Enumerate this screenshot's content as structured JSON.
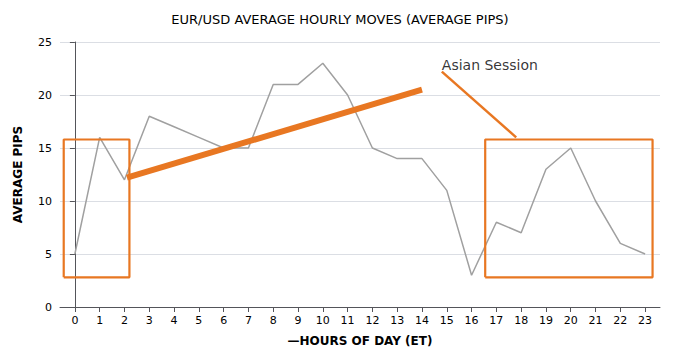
{
  "chart_data": {
    "type": "line",
    "title": "EUR/USD AVERAGE HOURLY MOVES (AVERAGE PIPS)",
    "xlabel": "—HOURS OF DAY (ET)",
    "ylabel": "AVERAGE PIPS",
    "x": [
      0,
      1,
      2,
      3,
      4,
      5,
      6,
      7,
      8,
      9,
      10,
      11,
      12,
      13,
      14,
      15,
      16,
      17,
      18,
      19,
      20,
      21,
      22,
      23
    ],
    "values": [
      5,
      16,
      12,
      18,
      17,
      16,
      15,
      15,
      21,
      21,
      23,
      20,
      15,
      14,
      14,
      11,
      3,
      8,
      7,
      13,
      15,
      10,
      6,
      5
    ],
    "color": "#a0a0a0",
    "xlim": [
      -0.6,
      23.6
    ],
    "xticks": [
      0,
      1,
      2,
      3,
      4,
      5,
      6,
      7,
      8,
      9,
      10,
      11,
      12,
      13,
      14,
      15,
      16,
      17,
      18,
      19,
      20,
      21,
      22,
      23
    ],
    "ylim": [
      0,
      25
    ],
    "yticks": [
      0,
      5,
      10,
      15,
      20,
      25
    ],
    "grid": true,
    "annotations": [
      {
        "text": "Asian Session",
        "x": 14.8,
        "y": 22.2,
        "arrow_x": 17.8,
        "arrow_y": 16.0,
        "color": "#E87722"
      }
    ],
    "shapes": [
      {
        "type": "line",
        "x": [
          2.1,
          14.0
        ],
        "y": [
          12.2,
          20.5
        ],
        "color": "#E87722"
      },
      {
        "type": "rect",
        "x": -0.45,
        "y": 2.8,
        "width": 2.65,
        "height": 13.0,
        "color": "#E87722"
      },
      {
        "type": "rect",
        "x": 16.55,
        "y": 2.8,
        "width": 6.75,
        "height": 13.0,
        "color": "#E87722"
      }
    ]
  }
}
